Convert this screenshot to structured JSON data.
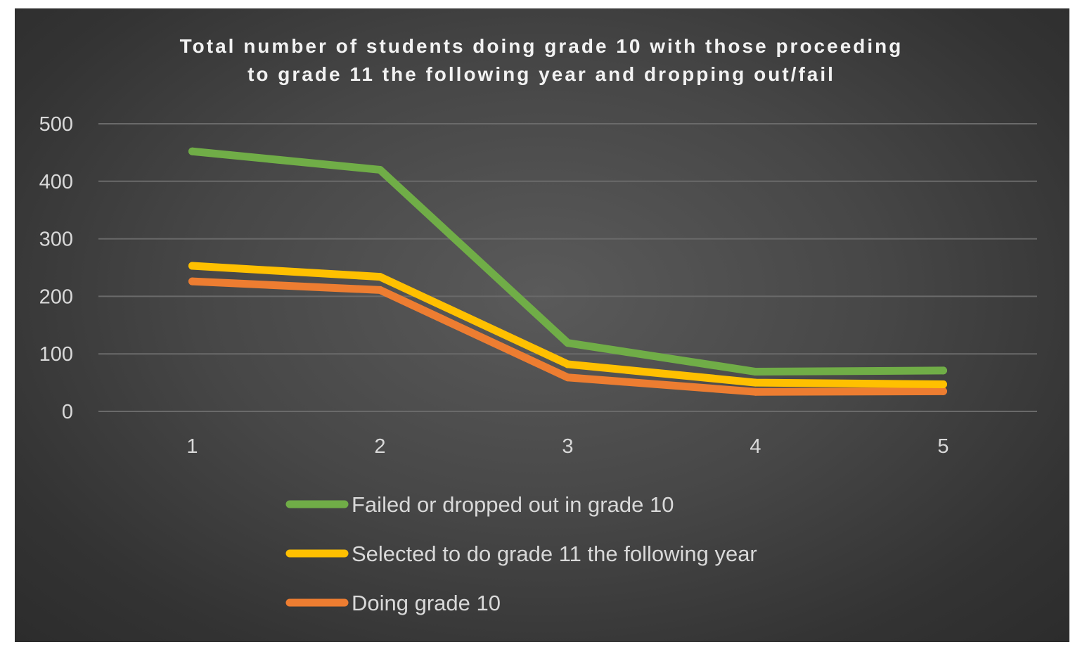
{
  "chart_data": {
    "type": "line",
    "title_lines": [
      "Total number of students doing grade 10 with those proceeding",
      "to grade 11 the following year and dropping out/fail"
    ],
    "xlabel": "",
    "ylabel": "",
    "categories": [
      "1",
      "2",
      "3",
      "4",
      "5"
    ],
    "ylim": [
      0,
      500
    ],
    "yticks": [
      0,
      100,
      200,
      300,
      400,
      500
    ],
    "grid": true,
    "legend_position": "bottom",
    "series": [
      {
        "name": "Failed or dropped out in grade 10",
        "color": "#70ad47",
        "values": [
          452,
          420,
          119,
          69,
          71
        ]
      },
      {
        "name": "Selected to do grade 11 the following year",
        "color": "#ffc000",
        "values": [
          253,
          234,
          82,
          50,
          47
        ]
      },
      {
        "name": "Doing grade 10",
        "color": "#ed7d31",
        "values": [
          226,
          211,
          59,
          34,
          35
        ]
      }
    ]
  }
}
